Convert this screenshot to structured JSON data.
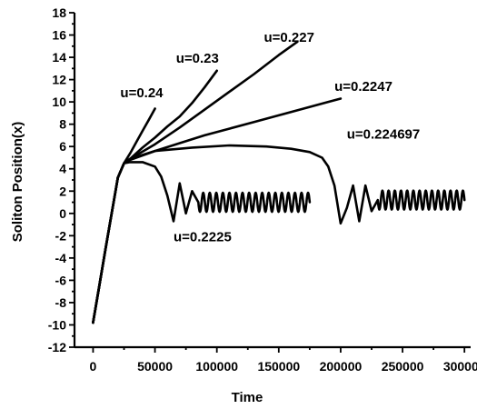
{
  "chart_data": {
    "type": "line",
    "title": "",
    "xlabel": "Time",
    "ylabel": "Soliton Position(x)",
    "xlim": [
      -15000,
      305000
    ],
    "ylim": [
      -12,
      18
    ],
    "x_ticks": [
      0,
      50000,
      100000,
      150000,
      200000,
      250000,
      300000
    ],
    "x_tick_labels": [
      "0",
      "50000",
      "100000",
      "150000",
      "200000",
      "250000",
      "300000"
    ],
    "y_ticks": [
      -12,
      -10,
      -8,
      -6,
      -4,
      -2,
      0,
      2,
      4,
      6,
      8,
      10,
      12,
      14,
      16,
      18
    ],
    "y_tick_labels": [
      "-12",
      "-10",
      "-8",
      "-6",
      "-4",
      "-2",
      "0",
      "2",
      "4",
      "6",
      "8",
      "10",
      "12",
      "14",
      "16",
      "18"
    ],
    "grid": false,
    "legend": "none",
    "series": [
      {
        "name": "u=0.24",
        "label_at": [
          22000,
          10.4
        ],
        "x": [
          0,
          5000,
          10000,
          15000,
          20000,
          25000,
          30000,
          35000,
          40000,
          45000,
          50000
        ],
        "y": [
          -9.8,
          -6.5,
          -3.2,
          0.0,
          3.2,
          4.5,
          5.4,
          6.4,
          7.4,
          8.4,
          9.4
        ]
      },
      {
        "name": "u=0.23",
        "label_at": [
          67000,
          13.5
        ],
        "x": [
          0,
          5000,
          10000,
          15000,
          20000,
          25000,
          30000,
          40000,
          50000,
          60000,
          70000,
          80000,
          90000,
          100000
        ],
        "y": [
          -9.8,
          -6.5,
          -3.2,
          0.0,
          3.2,
          4.5,
          4.9,
          5.9,
          6.8,
          7.8,
          8.7,
          9.9,
          11.3,
          12.8
        ]
      },
      {
        "name": "u=0.227",
        "label_at": [
          138000,
          15.4
        ],
        "x": [
          0,
          5000,
          10000,
          15000,
          20000,
          25000,
          30000,
          50000,
          70000,
          90000,
          110000,
          130000,
          150000,
          165000
        ],
        "y": [
          -9.8,
          -6.5,
          -3.2,
          0.0,
          3.2,
          4.5,
          4.9,
          6.2,
          7.7,
          9.3,
          10.9,
          12.5,
          14.2,
          15.4
        ]
      },
      {
        "name": "u=0.2247",
        "label_at": [
          195000,
          11.0
        ],
        "x": [
          0,
          5000,
          10000,
          15000,
          20000,
          25000,
          30000,
          50000,
          70000,
          90000,
          110000,
          130000,
          150000,
          170000,
          190000,
          200000
        ],
        "y": [
          -9.8,
          -6.5,
          -3.2,
          0.0,
          3.2,
          4.5,
          4.8,
          5.6,
          6.3,
          7.0,
          7.6,
          8.2,
          8.8,
          9.4,
          10.0,
          10.3
        ]
      },
      {
        "name": "u=0.224697",
        "label_at": [
          205000,
          6.7
        ],
        "x": [
          0,
          5000,
          10000,
          15000,
          20000,
          25000,
          30000,
          50000,
          80000,
          110000,
          140000,
          160000,
          175000,
          185000,
          190000,
          195000,
          200000,
          205000,
          210000,
          215000,
          220000,
          225000,
          230000,
          300000
        ],
        "y": [
          -9.8,
          -6.5,
          -3.2,
          0.0,
          3.2,
          4.5,
          4.9,
          5.6,
          5.9,
          6.1,
          6.0,
          5.8,
          5.5,
          5.0,
          4.2,
          2.5,
          -0.9,
          0.5,
          2.5,
          -0.7,
          2.5,
          0.2,
          1.5,
          1.2
        ],
        "osc_x": [
          230000,
          300000
        ],
        "osc_center": 1.2,
        "osc_amplitude": 0.85,
        "osc_cycles": 14
      },
      {
        "name": "u=0.2225",
        "label_at": [
          65000,
          -2.5
        ],
        "x": [
          0,
          5000,
          10000,
          15000,
          20000,
          25000,
          30000,
          40000,
          50000,
          55000,
          60000,
          65000,
          70000,
          75000,
          80000,
          85000,
          175000
        ],
        "y": [
          -9.8,
          -6.5,
          -3.2,
          0.0,
          3.2,
          4.5,
          4.6,
          4.6,
          4.2,
          3.3,
          1.6,
          -0.7,
          2.7,
          0.0,
          2.0,
          0.8,
          1.0
        ],
        "osc_x": [
          85000,
          175000
        ],
        "osc_center": 1.0,
        "osc_amplitude": 0.85,
        "osc_cycles": 17
      }
    ]
  }
}
